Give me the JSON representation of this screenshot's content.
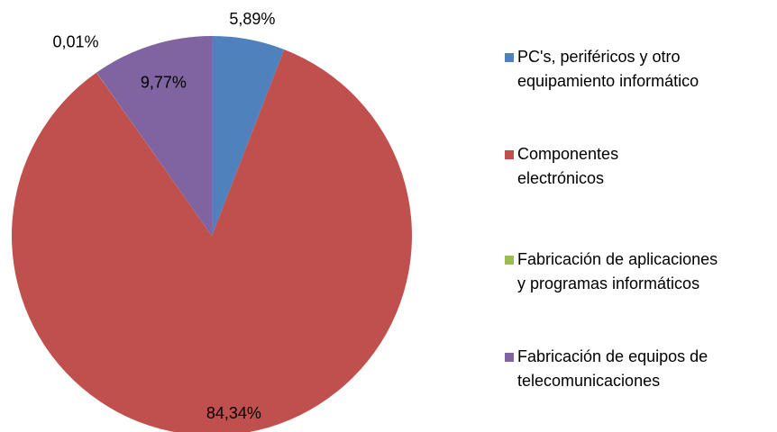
{
  "chart_data": {
    "type": "pie",
    "categories": [
      "PC's, periféricos y otro equipamiento informático",
      "Componentes electrónicos",
      "Fabricación de aplicaciones y programas informáticos",
      "Fabricación de equipos de telecomunicaciones"
    ],
    "values": [
      5.89,
      84.34,
      0.01,
      9.77
    ],
    "value_labels": [
      "5,89%",
      "84,34%",
      "0,01%",
      "9,77%"
    ],
    "colors": [
      "#4f81bd",
      "#c0504d",
      "#9bbb59",
      "#8064a2"
    ],
    "legend": "right"
  }
}
